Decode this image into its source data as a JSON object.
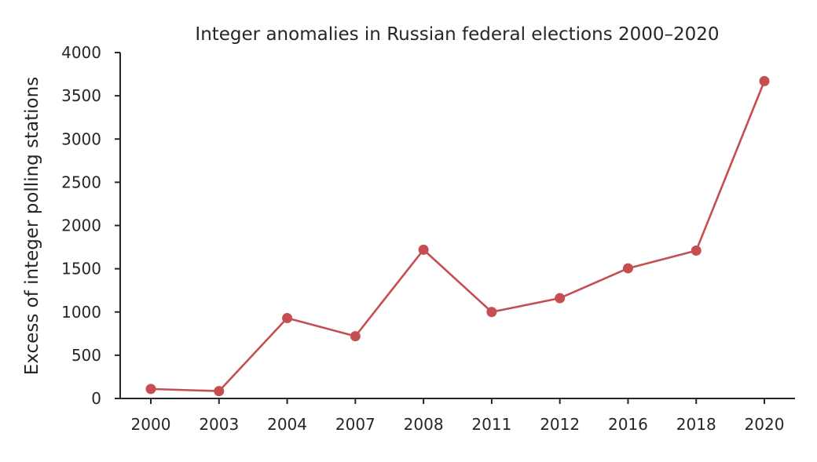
{
  "chart_data": {
    "type": "line",
    "title": "Integer anomalies in Russian federal elections 2000–2020",
    "xlabel": "",
    "ylabel": "Excess of integer polling stations",
    "categories": [
      "2000",
      "2003",
      "2004",
      "2007",
      "2008",
      "2011",
      "2012",
      "2016",
      "2018",
      "2020"
    ],
    "series": [
      {
        "values": [
          110,
          85,
          930,
          720,
          1720,
          1000,
          1160,
          1505,
          1710,
          3670
        ],
        "color": "#c44e52"
      }
    ],
    "ylim": [
      0,
      4000
    ],
    "yticks": [
      0,
      500,
      1000,
      1500,
      2000,
      2500,
      3000,
      3500,
      4000
    ],
    "grid": false,
    "legend": "none",
    "marker": "circle"
  }
}
